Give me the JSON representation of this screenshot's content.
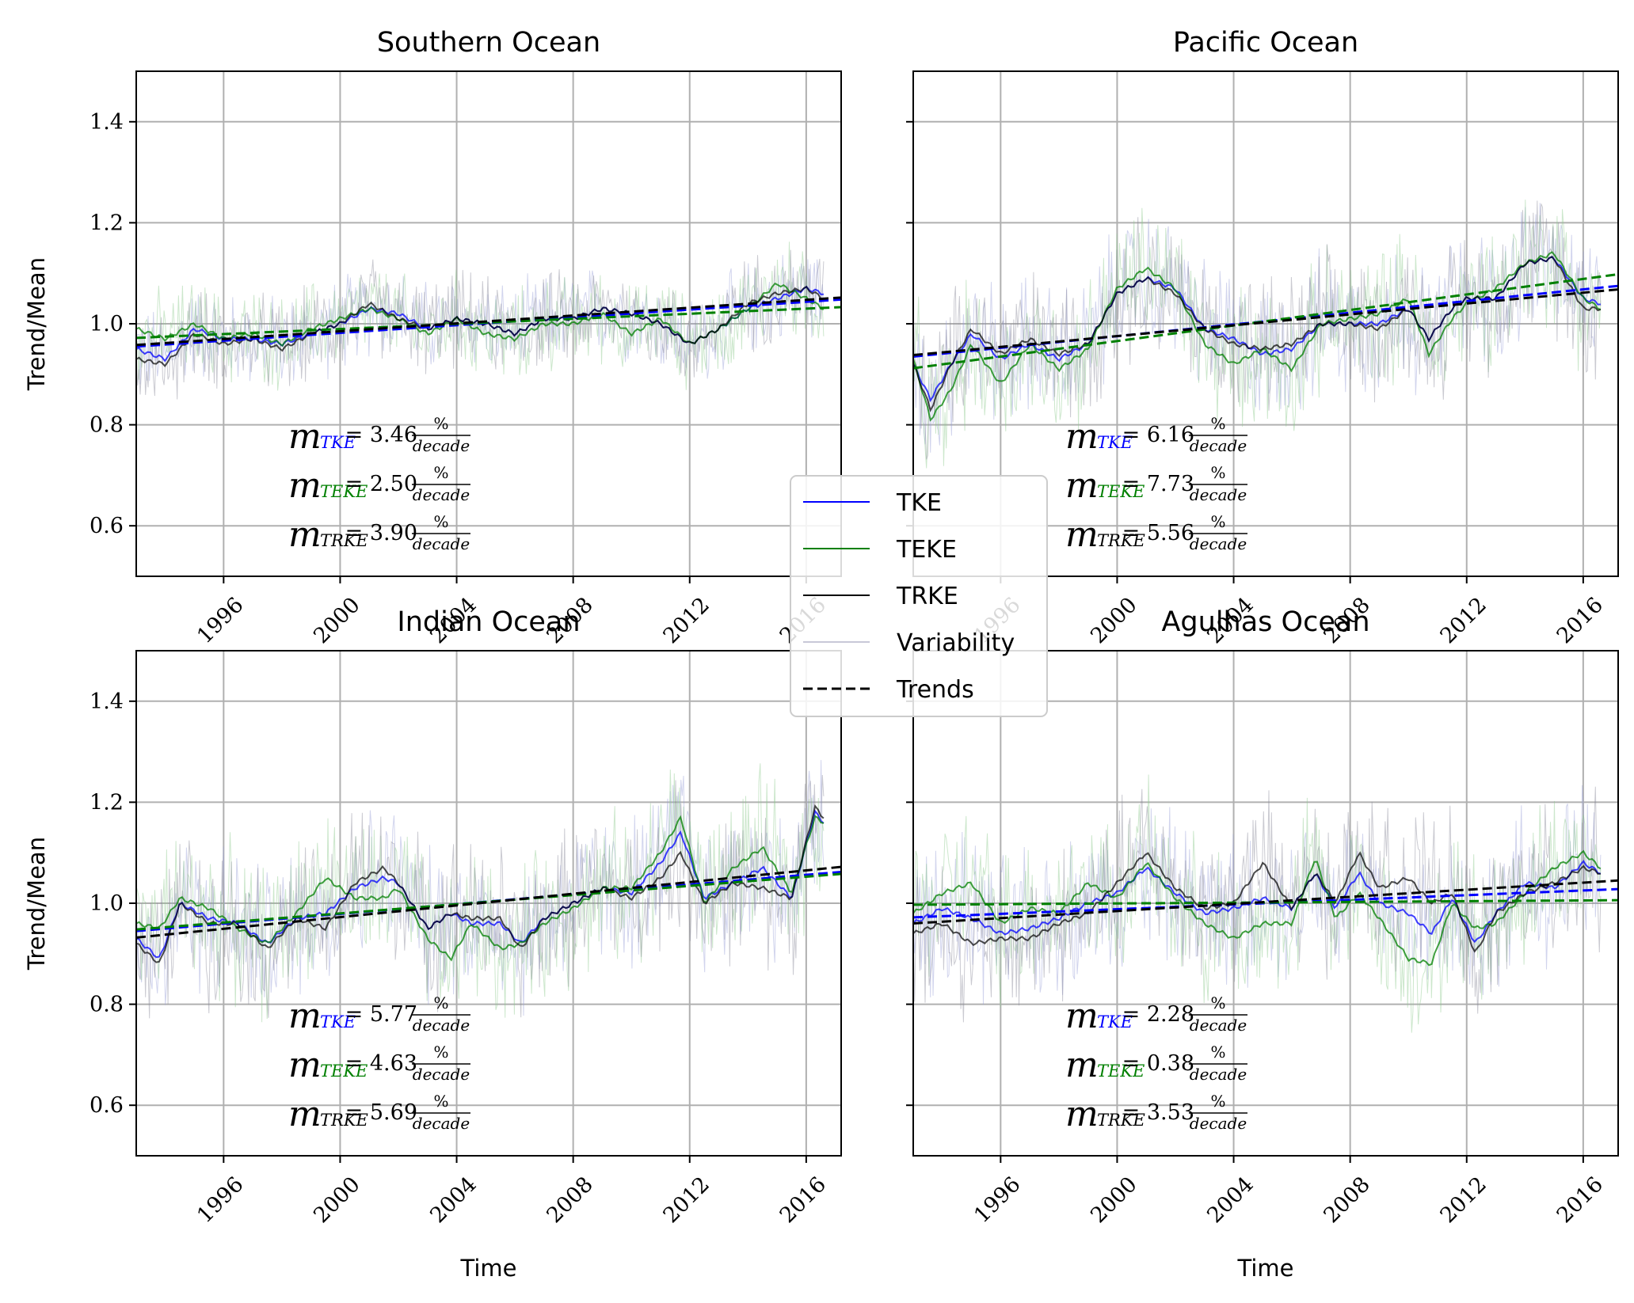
{
  "chart_data": [
    {
      "type": "line",
      "title": "Southern Ocean",
      "xlabel": "",
      "ylabel": "Trend/Mean",
      "xlim": [
        1993.0,
        2017.2
      ],
      "ylim": [
        0.5,
        1.5
      ],
      "xticks": [
        "1996",
        "2000",
        "2004",
        "2008",
        "2012",
        "2016"
      ],
      "yticks": [
        "0.6",
        "0.8",
        "1.0",
        "1.2",
        "1.4"
      ],
      "grid": true,
      "series": [
        {
          "name": "TKE",
          "color": "#0000ff",
          "x": [
            1993.0,
            1994.0,
            1995.0,
            1996.0,
            1997.0,
            1998.0,
            1999.0,
            2000.0,
            2001.0,
            2002.0,
            2003.0,
            2004.0,
            2005.0,
            2006.0,
            2007.0,
            2008.0,
            2009.0,
            2010.0,
            2011.0,
            2012.0,
            2013.0,
            2014.0,
            2015.0,
            2016.0,
            2016.6
          ],
          "y": [
            0.95,
            0.93,
            0.99,
            0.97,
            0.97,
            0.96,
            0.98,
            1.0,
            1.03,
            1.02,
            0.99,
            1.01,
            1.0,
            0.98,
            1.01,
            1.01,
            1.03,
            1.02,
            1.0,
            0.96,
            0.99,
            1.03,
            1.05,
            1.07,
            1.06
          ]
        },
        {
          "name": "TEKE",
          "color": "#008000",
          "x": [
            1993.0,
            1994.0,
            1995.0,
            1996.0,
            1997.0,
            1998.0,
            1999.0,
            2000.0,
            2001.0,
            2002.0,
            2003.0,
            2004.0,
            2005.0,
            2006.0,
            2007.0,
            2008.0,
            2009.0,
            2010.0,
            2011.0,
            2012.0,
            2013.0,
            2014.0,
            2015.0,
            2016.0,
            2016.6
          ],
          "y": [
            0.99,
            0.97,
            1.0,
            0.97,
            0.98,
            0.96,
            0.99,
            1.01,
            1.03,
            1.01,
            0.98,
            1.01,
            0.98,
            0.97,
            1.0,
            1.0,
            1.02,
            0.98,
            1.01,
            0.96,
            0.99,
            1.03,
            1.08,
            1.05,
            1.03
          ]
        },
        {
          "name": "TRKE",
          "color": "#000000",
          "x": [
            1993.0,
            1994.0,
            1995.0,
            1996.0,
            1997.0,
            1998.0,
            1999.0,
            2000.0,
            2001.0,
            2002.0,
            2003.0,
            2004.0,
            2005.0,
            2006.0,
            2007.0,
            2008.0,
            2009.0,
            2010.0,
            2011.0,
            2012.0,
            2013.0,
            2014.0,
            2015.0,
            2016.0,
            2016.6
          ],
          "y": [
            0.93,
            0.92,
            0.98,
            0.96,
            0.97,
            0.95,
            0.98,
            1.0,
            1.04,
            1.01,
            0.99,
            1.01,
            1.0,
            0.98,
            1.01,
            1.01,
            1.03,
            1.02,
            1.0,
            0.96,
            0.99,
            1.04,
            1.06,
            1.07,
            1.05
          ]
        },
        {
          "name": "TKE trend",
          "color": "#0000ff",
          "dashed": true,
          "x": [
            1993.0,
            2017.2
          ],
          "y": [
            0.955,
            1.048
          ]
        },
        {
          "name": "TEKE trend",
          "color": "#008000",
          "dashed": true,
          "x": [
            1993.0,
            2017.2
          ],
          "y": [
            0.972,
            1.033
          ]
        },
        {
          "name": "TRKE trend",
          "color": "#000000",
          "dashed": true,
          "x": [
            1993.0,
            2017.2
          ],
          "y": [
            0.958,
            1.052
          ]
        }
      ],
      "variability_amplitude": 0.08,
      "annotations": {
        "tke": "= 3.46",
        "teke": "= 2.50",
        "trke": "= 3.90"
      }
    },
    {
      "type": "line",
      "title": "Pacific Ocean",
      "xlabel": "",
      "ylabel": "",
      "xlim": [
        1993.0,
        2017.2
      ],
      "ylim": [
        0.5,
        1.5
      ],
      "xticks": [
        "1996",
        "2000",
        "2004",
        "2008",
        "2012",
        "2016"
      ],
      "yticks": [],
      "grid": true,
      "series": [
        {
          "name": "TKE",
          "color": "#0000ff",
          "x": [
            1993.0,
            1993.6,
            1994.3,
            1995.0,
            1996.0,
            1997.0,
            1998.0,
            1999.0,
            2000.0,
            2001.0,
            2002.0,
            2003.0,
            2004.0,
            2005.0,
            2006.0,
            2007.0,
            2008.0,
            2009.0,
            2010.0,
            2010.7,
            2011.5,
            2012.0,
            2013.0,
            2014.0,
            2015.0,
            2016.0,
            2016.6
          ],
          "y": [
            0.92,
            0.85,
            0.92,
            0.98,
            0.93,
            0.96,
            0.93,
            0.96,
            1.06,
            1.09,
            1.07,
            0.99,
            0.97,
            0.94,
            0.95,
            1.0,
            1.0,
            1.0,
            1.03,
            0.97,
            1.03,
            1.05,
            1.05,
            1.12,
            1.13,
            1.05,
            1.04
          ]
        },
        {
          "name": "TEKE",
          "color": "#008000",
          "x": [
            1993.0,
            1993.6,
            1994.3,
            1995.0,
            1996.0,
            1997.0,
            1998.0,
            1999.0,
            2000.0,
            2001.0,
            2002.0,
            2003.0,
            2004.0,
            2005.0,
            2006.0,
            2007.0,
            2008.0,
            2009.0,
            2010.0,
            2010.7,
            2011.5,
            2012.0,
            2013.0,
            2014.0,
            2015.0,
            2016.0,
            2016.6
          ],
          "y": [
            0.93,
            0.81,
            0.87,
            0.96,
            0.88,
            0.96,
            0.91,
            0.95,
            1.07,
            1.11,
            1.07,
            0.96,
            0.92,
            0.95,
            0.91,
            1.0,
            1.01,
            1.02,
            1.05,
            0.94,
            1.01,
            1.04,
            1.07,
            1.12,
            1.14,
            1.05,
            1.03
          ]
        },
        {
          "name": "TRKE",
          "color": "#000000",
          "x": [
            1993.0,
            1993.6,
            1994.3,
            1995.0,
            1996.0,
            1997.0,
            1998.0,
            1999.0,
            2000.0,
            2001.0,
            2002.0,
            2003.0,
            2004.0,
            2005.0,
            2006.0,
            2007.0,
            2008.0,
            2009.0,
            2010.0,
            2010.7,
            2011.5,
            2012.0,
            2013.0,
            2014.0,
            2015.0,
            2016.0,
            2016.6
          ],
          "y": [
            0.92,
            0.83,
            0.92,
            0.99,
            0.94,
            0.97,
            0.94,
            0.96,
            1.06,
            1.09,
            1.06,
            0.99,
            0.96,
            0.95,
            0.96,
            1.0,
            1.0,
            0.99,
            1.03,
            0.97,
            1.03,
            1.05,
            1.05,
            1.12,
            1.13,
            1.03,
            1.03
          ]
        },
        {
          "name": "TKE trend",
          "color": "#0000ff",
          "dashed": true,
          "x": [
            1993.0,
            2017.2
          ],
          "y": [
            0.935,
            1.075
          ]
        },
        {
          "name": "TEKE trend",
          "color": "#008000",
          "dashed": true,
          "x": [
            1993.0,
            2017.2
          ],
          "y": [
            0.912,
            1.098
          ]
        },
        {
          "name": "TRKE trend",
          "color": "#000000",
          "dashed": true,
          "x": [
            1993.0,
            2017.2
          ],
          "y": [
            0.938,
            1.068
          ]
        }
      ],
      "variability_amplitude": 0.12,
      "annotations": {
        "tke": "= 6.16",
        "teke": "= 7.73",
        "trke": "= 5.56"
      }
    },
    {
      "type": "line",
      "title": "Indian Ocean",
      "xlabel": "Time",
      "ylabel": "Trend/Mean",
      "xlim": [
        1993.0,
        2017.2
      ],
      "ylim": [
        0.5,
        1.5
      ],
      "xticks": [
        "1996",
        "2000",
        "2004",
        "2008",
        "2012",
        "2016"
      ],
      "yticks": [
        "0.6",
        "0.8",
        "1.0",
        "1.2",
        "1.4"
      ],
      "grid": true,
      "series": [
        {
          "name": "TKE",
          "color": "#0000ff",
          "x": [
            1993.0,
            1993.8,
            1994.5,
            1995.5,
            1996.5,
            1997.5,
            1998.5,
            1999.5,
            2000.5,
            2001.5,
            2002.0,
            2003.0,
            2003.8,
            2004.5,
            2005.5,
            2006.2,
            2007.0,
            2008.0,
            2009.0,
            2010.0,
            2011.0,
            2011.7,
            2012.5,
            2013.5,
            2014.5,
            2015.5,
            2016.3,
            2016.6
          ],
          "y": [
            0.93,
            0.89,
            1.0,
            0.97,
            0.96,
            0.92,
            0.97,
            0.98,
            1.03,
            1.05,
            1.04,
            0.95,
            0.98,
            0.96,
            0.96,
            0.92,
            0.97,
            1.0,
            1.03,
            1.02,
            1.08,
            1.14,
            1.01,
            1.04,
            1.07,
            1.01,
            1.18,
            1.16
          ]
        },
        {
          "name": "TEKE",
          "color": "#008000",
          "x": [
            1993.0,
            1993.8,
            1994.5,
            1995.5,
            1996.5,
            1997.5,
            1998.5,
            1999.5,
            2000.5,
            2001.5,
            2002.0,
            2003.0,
            2003.8,
            2004.5,
            2005.5,
            2006.2,
            2007.0,
            2008.0,
            2009.0,
            2010.0,
            2011.0,
            2011.7,
            2012.5,
            2013.5,
            2014.5,
            2015.5,
            2016.3,
            2016.6
          ],
          "y": [
            0.96,
            0.95,
            1.01,
            0.99,
            0.95,
            0.92,
            0.98,
            1.05,
            1.01,
            1.01,
            1.03,
            0.93,
            0.89,
            0.96,
            0.91,
            0.92,
            0.96,
            0.99,
            1.03,
            1.03,
            1.1,
            1.17,
            1.0,
            1.07,
            1.11,
            1.02,
            1.17,
            1.16
          ]
        },
        {
          "name": "TRKE",
          "color": "#000000",
          "x": [
            1993.0,
            1993.8,
            1994.5,
            1995.5,
            1996.5,
            1997.5,
            1998.5,
            1999.5,
            2000.5,
            2001.5,
            2002.0,
            2003.0,
            2003.8,
            2004.5,
            2005.5,
            2006.2,
            2007.0,
            2008.0,
            2009.0,
            2010.0,
            2011.0,
            2011.7,
            2012.5,
            2013.5,
            2014.5,
            2015.5,
            2016.3,
            2016.6
          ],
          "y": [
            0.92,
            0.88,
            1.0,
            0.96,
            0.96,
            0.91,
            0.97,
            0.95,
            1.04,
            1.07,
            1.04,
            0.95,
            0.98,
            0.97,
            0.97,
            0.91,
            0.97,
            1.0,
            1.03,
            1.01,
            1.05,
            1.1,
            1.0,
            1.04,
            1.03,
            1.01,
            1.19,
            1.17
          ]
        },
        {
          "name": "TKE trend",
          "color": "#0000ff",
          "dashed": true,
          "x": [
            1993.0,
            2017.2
          ],
          "y": [
            0.945,
            1.062
          ]
        },
        {
          "name": "TEKE trend",
          "color": "#008000",
          "dashed": true,
          "x": [
            1993.0,
            2017.2
          ],
          "y": [
            0.948,
            1.058
          ]
        },
        {
          "name": "TRKE trend",
          "color": "#000000",
          "dashed": true,
          "x": [
            1993.0,
            2017.2
          ],
          "y": [
            0.932,
            1.072
          ]
        }
      ],
      "variability_amplitude": 0.13,
      "annotations": {
        "tke": "= 5.77",
        "teke": "= 4.63",
        "trke": "= 5.69"
      }
    },
    {
      "type": "line",
      "title": "Agulhas Ocean",
      "xlabel": "Time",
      "ylabel": "",
      "xlim": [
        1993.0,
        2017.2
      ],
      "ylim": [
        0.5,
        1.5
      ],
      "xticks": [
        "1996",
        "2000",
        "2004",
        "2008",
        "2012",
        "2016"
      ],
      "yticks": [],
      "grid": true,
      "series": [
        {
          "name": "TKE",
          "color": "#0000ff",
          "x": [
            1993.0,
            1994.0,
            1995.0,
            1996.0,
            1997.0,
            1998.0,
            1999.0,
            2000.0,
            2001.0,
            2002.0,
            2003.0,
            2004.0,
            2005.0,
            2006.0,
            2006.8,
            2007.5,
            2008.3,
            2009.0,
            2010.0,
            2010.8,
            2011.5,
            2012.3,
            2013.0,
            2014.0,
            2015.0,
            2016.0,
            2016.6
          ],
          "y": [
            0.96,
            0.99,
            0.97,
            0.94,
            0.95,
            0.97,
            1.0,
            1.02,
            1.07,
            1.02,
            0.98,
            0.99,
            1.01,
            0.99,
            1.06,
            0.99,
            1.06,
            1.0,
            0.98,
            0.94,
            1.01,
            0.92,
            0.98,
            1.04,
            1.03,
            1.08,
            1.06
          ]
        },
        {
          "name": "TEKE",
          "color": "#008000",
          "x": [
            1993.0,
            1994.0,
            1995.0,
            1996.0,
            1997.0,
            1998.0,
            1999.0,
            2000.0,
            2001.0,
            2002.0,
            2003.0,
            2004.0,
            2005.0,
            2006.0,
            2006.8,
            2007.5,
            2008.3,
            2009.0,
            2010.0,
            2010.8,
            2011.5,
            2012.3,
            2013.0,
            2014.0,
            2015.0,
            2016.0,
            2016.6
          ],
          "y": [
            0.98,
            1.02,
            1.04,
            0.96,
            0.99,
            0.98,
            1.04,
            1.01,
            1.08,
            1.01,
            0.96,
            0.93,
            0.96,
            0.96,
            1.09,
            0.97,
            1.02,
            0.97,
            0.89,
            0.88,
            1.0,
            0.95,
            0.96,
            1.02,
            1.07,
            1.1,
            1.07
          ]
        },
        {
          "name": "TRKE",
          "color": "#000000",
          "x": [
            1993.0,
            1994.0,
            1995.0,
            1996.0,
            1997.0,
            1998.0,
            1999.0,
            2000.0,
            2001.0,
            2002.0,
            2003.0,
            2004.0,
            2005.0,
            2006.0,
            2006.8,
            2007.5,
            2008.3,
            2009.0,
            2010.0,
            2010.8,
            2011.5,
            2012.3,
            2013.0,
            2014.0,
            2015.0,
            2016.0,
            2016.6
          ],
          "y": [
            0.94,
            0.96,
            0.92,
            0.93,
            0.93,
            0.96,
            0.98,
            1.04,
            1.1,
            1.03,
            0.99,
            1.0,
            1.08,
            0.99,
            1.06,
            1.0,
            1.1,
            1.03,
            1.05,
            1.0,
            1.02,
            0.9,
            0.98,
            1.02,
            1.04,
            1.07,
            1.06
          ]
        },
        {
          "name": "TKE trend",
          "color": "#0000ff",
          "dashed": true,
          "x": [
            1993.0,
            2017.2
          ],
          "y": [
            0.972,
            1.028
          ]
        },
        {
          "name": "TEKE trend",
          "color": "#008000",
          "dashed": true,
          "x": [
            1993.0,
            2017.2
          ],
          "y": [
            0.997,
            1.006
          ]
        },
        {
          "name": "TRKE trend",
          "color": "#000000",
          "dashed": true,
          "x": [
            1993.0,
            2017.2
          ],
          "y": [
            0.96,
            1.045
          ]
        }
      ],
      "variability_amplitude": 0.13,
      "annotations": {
        "tke": "= 2.28",
        "teke": "= 0.38",
        "trke": "= 3.53"
      }
    }
  ],
  "annotation_labels": {
    "m": "m",
    "tke_sub": "TKE",
    "teke_sub": "TEKE",
    "trke_sub": "TRKE",
    "percent": "%",
    "per": "decade"
  },
  "legend": {
    "placement": "center",
    "items": [
      {
        "label": "TKE",
        "color": "#0000ff",
        "style": "solid"
      },
      {
        "label": "TEKE",
        "color": "#008000",
        "style": "solid"
      },
      {
        "label": "TRKE",
        "color": "#000000",
        "style": "solid"
      },
      {
        "label": "Variability",
        "color": "#c8c8d8",
        "style": "solid"
      },
      {
        "label": "Trends",
        "color": "#000000",
        "style": "dashed"
      }
    ]
  }
}
